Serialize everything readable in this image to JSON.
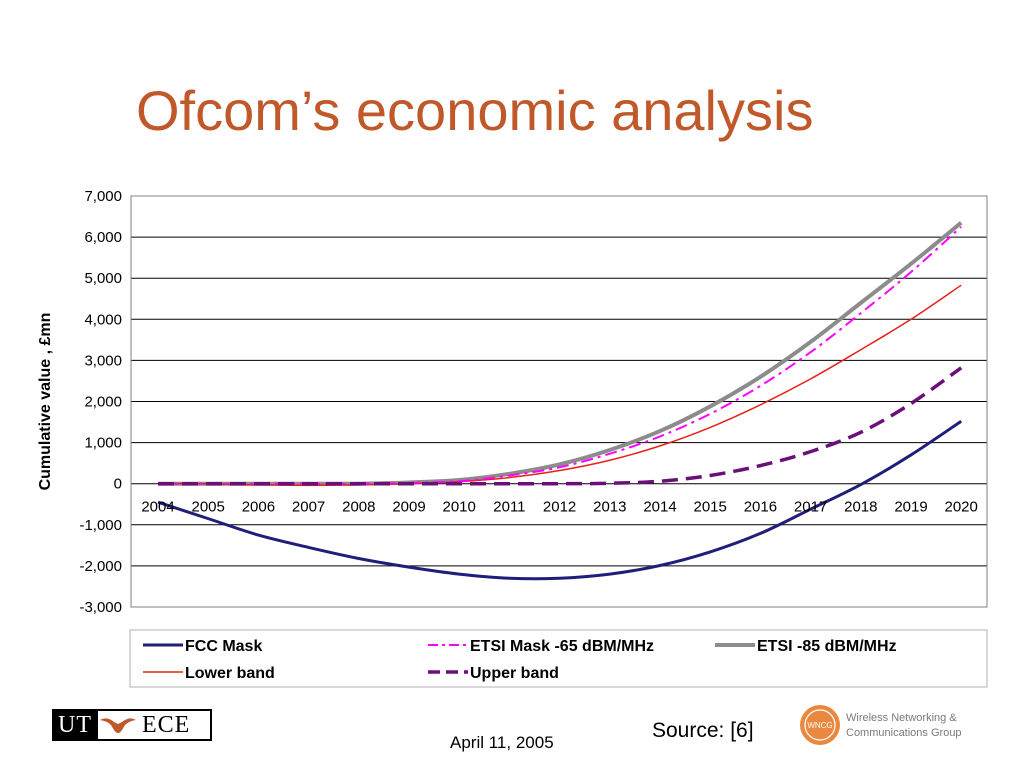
{
  "slide": {
    "title": "Ofcom’s economic analysis",
    "date": "April 11, 2005",
    "source": "Source: [6]"
  },
  "logos": {
    "ut_left": "UT",
    "ut_right": "ECE",
    "wncg_badge": "WNCG",
    "wncg_line1": "Wireless Networking &",
    "wncg_line2": "Communications Group"
  },
  "chart_data": {
    "type": "line",
    "title": "",
    "xlabel": "",
    "ylabel": "Cumulative value , £mn",
    "categories": [
      "2004",
      "2005",
      "2006",
      "2007",
      "2008",
      "2009",
      "2010",
      "2011",
      "2012",
      "2013",
      "2014",
      "2015",
      "2016",
      "2017",
      "2018",
      "2019",
      "2020"
    ],
    "ylim": [
      -3000,
      7000
    ],
    "yticks": [
      7000,
      6000,
      5000,
      4000,
      3000,
      2000,
      1000,
      0,
      -1000,
      -2000,
      -3000
    ],
    "ytick_labels": [
      "7,000",
      "6,000",
      "5,000",
      "4,000",
      "3,000",
      "2,000",
      "1,000",
      "0",
      "-1,000",
      "-2,000",
      "-3,000"
    ],
    "grid": "horizontal",
    "legend_position": "bottom",
    "series": [
      {
        "name": "FCC Mask",
        "color": "#1f1f7a",
        "dash": "solid",
        "width": 3,
        "values": [
          -450,
          -850,
          -1250,
          -1550,
          -1820,
          -2030,
          -2200,
          -2300,
          -2300,
          -2200,
          -1990,
          -1660,
          -1210,
          -620,
          -20,
          700,
          1520
        ]
      },
      {
        "name": "ETSI Mask -65 dBM/MHz",
        "color": "#ff00ff",
        "dash": "dashdot",
        "width": 2,
        "values": [
          0,
          0,
          0,
          0,
          0,
          20,
          60,
          200,
          400,
          730,
          1150,
          1700,
          2380,
          3200,
          4150,
          5150,
          6250
        ]
      },
      {
        "name": "ETSI -85 dBM/MHz",
        "color": "#8c8c8c",
        "dash": "solid",
        "width": 4,
        "values": [
          0,
          0,
          0,
          0,
          0,
          30,
          90,
          240,
          470,
          820,
          1280,
          1880,
          2600,
          3450,
          4400,
          5350,
          6350
        ]
      },
      {
        "name": "Lower band",
        "color": "#e8201a",
        "dash": "solid",
        "width": 1.5,
        "values": [
          0,
          0,
          -30,
          -40,
          -30,
          0,
          50,
          150,
          320,
          570,
          920,
          1370,
          1920,
          2550,
          3260,
          4000,
          4830
        ]
      },
      {
        "name": "Upper band",
        "color": "#6b0f7a",
        "dash": "dashed",
        "width": 3.5,
        "values": [
          0,
          0,
          0,
          0,
          0,
          0,
          0,
          0,
          0,
          10,
          60,
          200,
          440,
          780,
          1250,
          1950,
          2820
        ]
      }
    ]
  }
}
